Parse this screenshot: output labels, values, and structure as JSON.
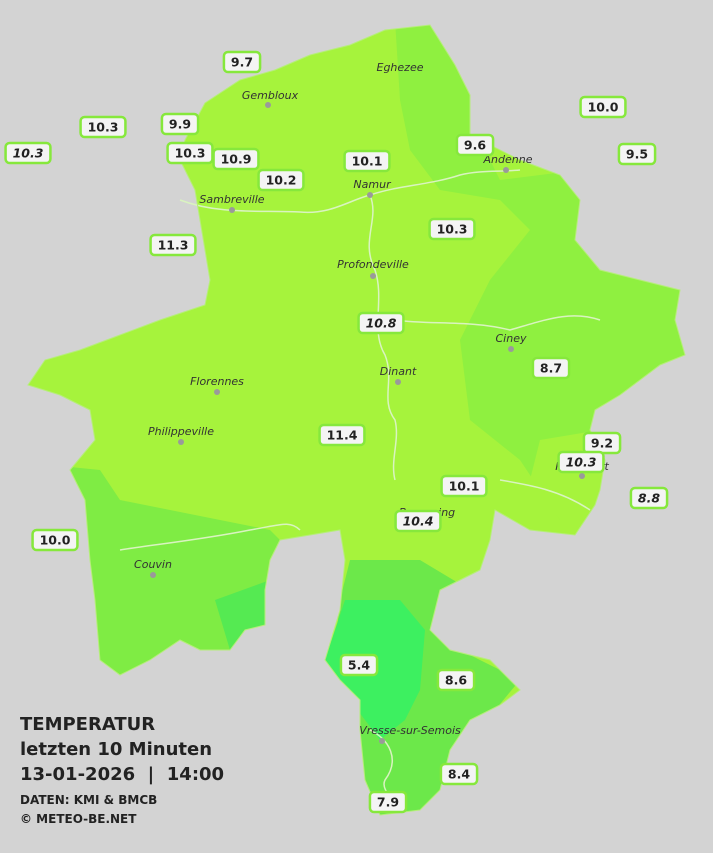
{
  "title": {
    "heading": "TEMPERATUR",
    "period": "letzten 10 Minuten",
    "datetime": "13-01-2026  |  14:00",
    "source": "DATEN: KMI & BMCB",
    "copyright": "© METEO-BE.NET"
  },
  "places": [
    {
      "name": "Eghezee"
    },
    {
      "name": "Gembloux"
    },
    {
      "name": "Andenne"
    },
    {
      "name": "Namur"
    },
    {
      "name": "Sambreville"
    },
    {
      "name": "Profondeville"
    },
    {
      "name": "Ciney"
    },
    {
      "name": "Dinant"
    },
    {
      "name": "Florennes"
    },
    {
      "name": "Philippeville"
    },
    {
      "name": "Rochefort"
    },
    {
      "name": "Beauraing"
    },
    {
      "name": "Couvin"
    },
    {
      "name": "Vresse-sur-Semois"
    }
  ],
  "stations": [
    {
      "label": "9.7"
    },
    {
      "label": "10.3"
    },
    {
      "label": "9.9"
    },
    {
      "label": "10.3",
      "italic": true
    },
    {
      "label": "10.3"
    },
    {
      "label": "10.9"
    },
    {
      "label": "10.2"
    },
    {
      "label": "10.1"
    },
    {
      "label": "9.6"
    },
    {
      "label": "10.0"
    },
    {
      "label": "9.5"
    },
    {
      "label": "10.3"
    },
    {
      "label": "11.3"
    },
    {
      "label": "10.8",
      "italic": true
    },
    {
      "label": "8.7"
    },
    {
      "label": "11.4"
    },
    {
      "label": "9.2"
    },
    {
      "label": "10.3",
      "italic": true
    },
    {
      "label": "10.1"
    },
    {
      "label": "10.4",
      "italic": true
    },
    {
      "label": "8.8",
      "italic": true
    },
    {
      "label": "10.0"
    },
    {
      "label": "5.4"
    },
    {
      "label": "8.6"
    },
    {
      "label": "8.4"
    },
    {
      "label": "7.9"
    }
  ]
}
